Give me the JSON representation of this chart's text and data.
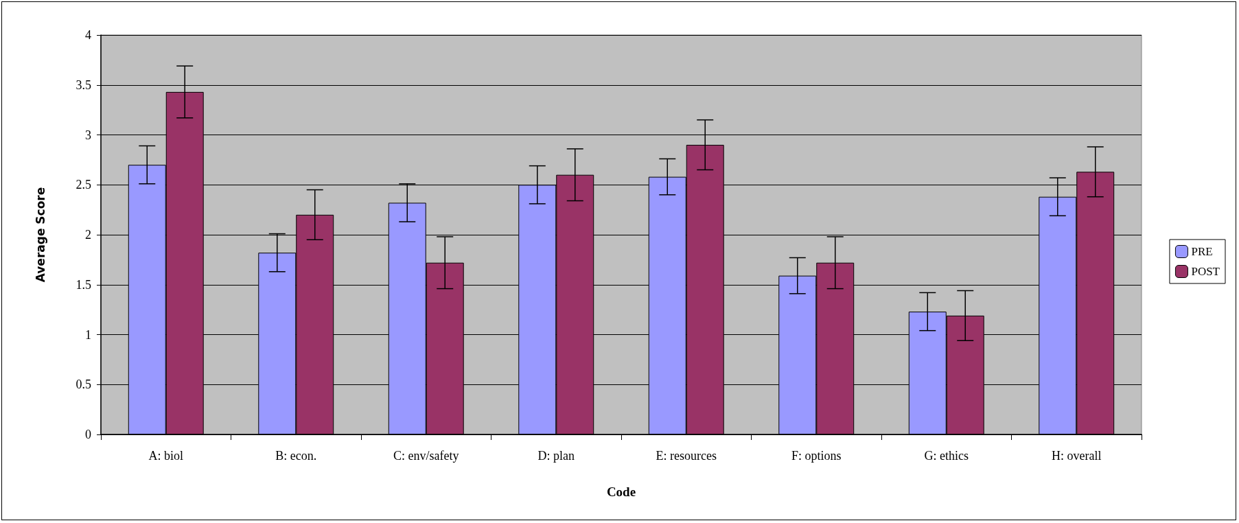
{
  "chart_data": {
    "type": "bar",
    "xlabel": "Code",
    "ylabel": "Average Score",
    "categories": [
      "A: biol",
      "B: econ.",
      "C: env/safety",
      "D: plan",
      "E: resources",
      "F: options",
      "G: ethics",
      "H: overall"
    ],
    "series": [
      {
        "name": "PRE",
        "color": "#9999ff",
        "values": [
          2.7,
          1.82,
          2.32,
          2.5,
          2.58,
          1.59,
          1.23,
          2.38
        ],
        "errors": [
          0.19,
          0.19,
          0.19,
          0.19,
          0.18,
          0.18,
          0.19,
          0.19
        ]
      },
      {
        "name": "POST",
        "color": "#993366",
        "values": [
          3.43,
          2.2,
          1.72,
          2.6,
          2.9,
          1.72,
          1.19,
          2.63
        ],
        "errors": [
          0.26,
          0.25,
          0.26,
          0.26,
          0.25,
          0.26,
          0.25,
          0.25
        ]
      }
    ],
    "ylim": [
      0,
      4
    ],
    "yticks": [
      0,
      0.5,
      1,
      1.5,
      2,
      2.5,
      3,
      3.5,
      4
    ],
    "grid": "y",
    "legend": "right"
  }
}
